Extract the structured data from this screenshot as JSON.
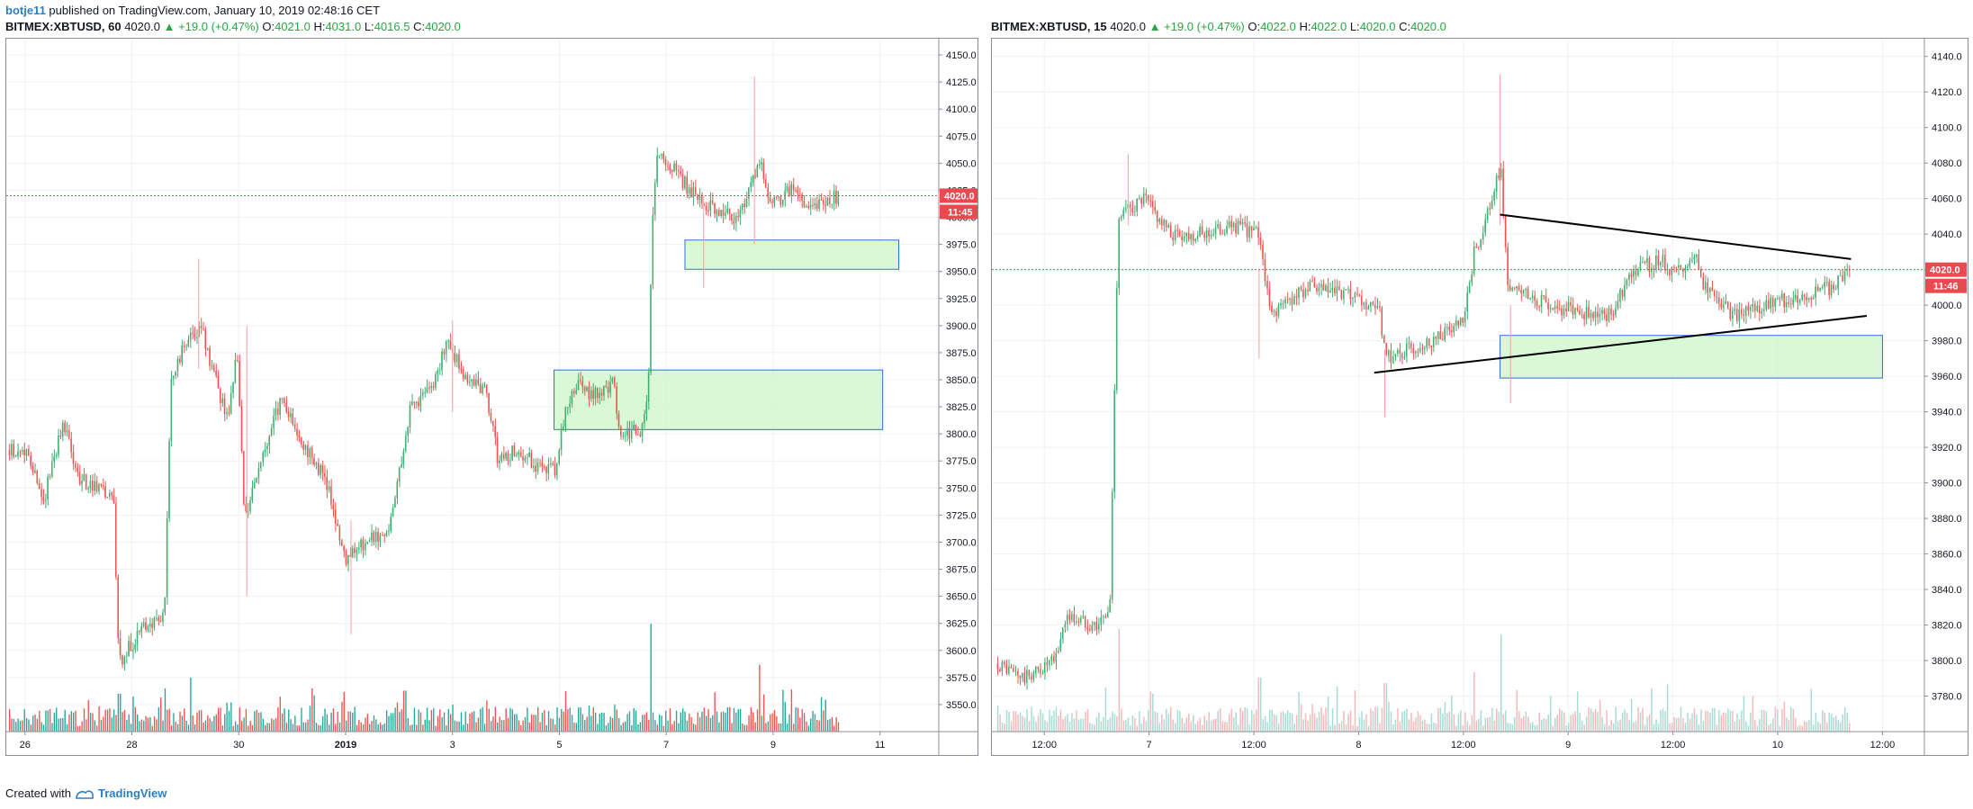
{
  "header": {
    "username": "botje11",
    "published_text": "published on TradingView.com, January 10, 2019 02:48:16 CET"
  },
  "colors": {
    "up": "#26a69a",
    "down": "#ef5350",
    "up_candle": "#3fae6f",
    "zone_fill": "#ccf5c8",
    "zone_border": "#2f6fe0",
    "price_line": "#e84a50",
    "grid": "#eef1f5"
  },
  "charts": [
    {
      "symbol": "BITMEX:XBTUSD, 60",
      "last": "4020.0",
      "change": "+19.0 (+0.47%)",
      "open": "4021.0",
      "high": "4031.0",
      "low": "4016.5",
      "close": "4020.0",
      "price_label": "4020.0",
      "countdown": "11:45"
    },
    {
      "symbol": "BITMEX:XBTUSD, 15",
      "last": "4020.0",
      "change": "+19.0 (+0.47%)",
      "open": "4022.0",
      "high": "4022.0",
      "low": "4020.0",
      "close": "4020.0",
      "price_label": "4020.0",
      "countdown": "11:46"
    }
  ],
  "chart_data": [
    {
      "type": "candlestick",
      "title": "BITMEX:XBTUSD, 60",
      "ylim": [
        3525,
        4165
      ],
      "y_ticks": [
        3550,
        3575,
        3600,
        3625,
        3650,
        3675,
        3700,
        3725,
        3750,
        3775,
        3800,
        3825,
        3850,
        3875,
        3900,
        3925,
        3950,
        3975,
        4000,
        4025,
        4050,
        4075,
        4100,
        4125,
        4150
      ],
      "x_ticks": [
        "26",
        "28",
        "30",
        "2019",
        "3",
        "5",
        "7",
        "9",
        "11"
      ],
      "x_tick_index": [
        0,
        2,
        4,
        6,
        8,
        10,
        12,
        14,
        16
      ],
      "x_range": [
        -0.35,
        17.1
      ],
      "last_price": 4020,
      "zones": [
        {
          "t0": 12.35,
          "t1": 16.35,
          "top": 3979,
          "bottom": 3952
        },
        {
          "t0": 9.9,
          "t1": 16.05,
          "top": 3859,
          "bottom": 3804
        }
      ],
      "trendlines": [],
      "path": [
        [
          0,
          3785
        ],
        [
          0.35,
          3740
        ],
        [
          0.7,
          3812
        ],
        [
          1.0,
          3760
        ],
        [
          1.3,
          3750
        ],
        [
          1.65,
          3740
        ],
        [
          1.75,
          3590
        ],
        [
          2.3,
          3625
        ],
        [
          2.6,
          3630
        ],
        [
          2.72,
          3850
        ],
        [
          3.0,
          3885
        ],
        [
          3.3,
          3895
        ],
        [
          3.55,
          3850
        ],
        [
          3.8,
          3810
        ],
        [
          3.95,
          3880
        ],
        [
          4.1,
          3725
        ],
        [
          4.5,
          3790
        ],
        [
          4.8,
          3835
        ],
        [
          5.2,
          3790
        ],
        [
          5.6,
          3760
        ],
        [
          6.0,
          3685
        ],
        [
          6.4,
          3700
        ],
        [
          6.8,
          3710
        ],
        [
          7.2,
          3825
        ],
        [
          7.6,
          3840
        ],
        [
          7.9,
          3885
        ],
        [
          8.2,
          3855
        ],
        [
          8.6,
          3840
        ],
        [
          8.85,
          3775
        ],
        [
          9.2,
          3785
        ],
        [
          9.6,
          3770
        ],
        [
          9.9,
          3765
        ],
        [
          10.05,
          3810
        ],
        [
          10.3,
          3845
        ],
        [
          10.6,
          3835
        ],
        [
          11.0,
          3848
        ],
        [
          11.1,
          3805
        ],
        [
          11.5,
          3800
        ],
        [
          11.65,
          3830
        ],
        [
          11.72,
          3975
        ],
        [
          11.8,
          4058
        ],
        [
          12.2,
          4040
        ],
        [
          12.6,
          4015
        ],
        [
          13.0,
          4005
        ],
        [
          13.3,
          4000
        ],
        [
          13.6,
          4030
        ],
        [
          13.75,
          4050
        ],
        [
          13.95,
          4010
        ],
        [
          14.3,
          4025
        ],
        [
          14.7,
          4010
        ],
        [
          15.0,
          4015
        ],
        [
          15.25,
          4020
        ]
      ],
      "spikes": [
        {
          "t": 3.25,
          "high": 3962,
          "low": 3860
        },
        {
          "t": 8.0,
          "high": 3905,
          "low": 3820
        },
        {
          "t": 13.65,
          "high": 4130,
          "low": 3975
        },
        {
          "t": 12.7,
          "high": 4020,
          "low": 3935
        },
        {
          "t": 4.15,
          "high": 3900,
          "low": 3650
        },
        {
          "t": 6.1,
          "high": 3720,
          "low": 3615
        }
      ],
      "volume_spikes": [
        {
          "t": 11.7,
          "v": 1.0
        },
        {
          "t": 13.75,
          "v": 0.62
        },
        {
          "t": 3.1,
          "v": 0.5
        },
        {
          "t": 2.6,
          "v": 0.4
        },
        {
          "t": 7.1,
          "v": 0.38
        },
        {
          "t": 1.75,
          "v": 0.35
        }
      ]
    },
    {
      "type": "candlestick",
      "title": "BITMEX:XBTUSD, 15",
      "ylim": [
        3760,
        4150
      ],
      "y_ticks": [
        3780,
        3800,
        3820,
        3840,
        3860,
        3880,
        3900,
        3920,
        3940,
        3960,
        3980,
        4000,
        4020,
        4040,
        4060,
        4080,
        4100,
        4120,
        4140
      ],
      "x_ticks": [
        "12:00",
        "7",
        "12:00",
        "8",
        "12:00",
        "9",
        "12:00",
        "10",
        "12:00"
      ],
      "x_tick_index": [
        0,
        1,
        2,
        3,
        4,
        5,
        6,
        7,
        8
      ],
      "x_range": [
        -0.5,
        8.4
      ],
      "last_price": 4020,
      "zones": [
        {
          "t0": 4.35,
          "t1": 8.0,
          "top": 3983,
          "bottom": 3959
        }
      ],
      "trendlines": [
        {
          "t0": 4.35,
          "y0": 4051,
          "t1": 7.7,
          "y1": 4026
        },
        {
          "t0": 3.15,
          "y0": 3962,
          "t1": 7.85,
          "y1": 3994
        }
      ],
      "path": [
        [
          -0.5,
          3800
        ],
        [
          -0.2,
          3790
        ],
        [
          0.1,
          3800
        ],
        [
          0.2,
          3825
        ],
        [
          0.5,
          3820
        ],
        [
          0.62,
          3828
        ],
        [
          0.7,
          4050
        ],
        [
          0.95,
          4060
        ],
        [
          1.2,
          4040
        ],
        [
          1.5,
          4040
        ],
        [
          1.8,
          4045
        ],
        [
          2.05,
          4040
        ],
        [
          2.15,
          3995
        ],
        [
          2.5,
          4010
        ],
        [
          2.9,
          4005
        ],
        [
          3.2,
          3995
        ],
        [
          3.25,
          3970
        ],
        [
          3.6,
          3978
        ],
        [
          4.0,
          3990
        ],
        [
          4.1,
          4030
        ],
        [
          4.2,
          4045
        ],
        [
          4.35,
          4078
        ],
        [
          4.42,
          4010
        ],
        [
          4.8,
          4000
        ],
        [
          5.2,
          3995
        ],
        [
          5.4,
          3995
        ],
        [
          5.6,
          4020
        ],
        [
          5.9,
          4025
        ],
        [
          6.0,
          4018
        ],
        [
          6.2,
          4028
        ],
        [
          6.3,
          4010
        ],
        [
          6.6,
          3993
        ],
        [
          6.9,
          4000
        ],
        [
          7.2,
          4005
        ],
        [
          7.5,
          4010
        ],
        [
          7.7,
          4022
        ]
      ],
      "spikes": [
        {
          "t": 4.35,
          "high": 4130,
          "low": 4045
        },
        {
          "t": 3.25,
          "high": 3975,
          "low": 3937
        },
        {
          "t": 4.45,
          "high": 4000,
          "low": 3945
        },
        {
          "t": 0.8,
          "high": 4085,
          "low": 4045
        },
        {
          "t": 2.05,
          "high": 4020,
          "low": 3970
        }
      ],
      "volume_spikes": [
        {
          "t": 0.7,
          "v": 0.95
        },
        {
          "t": 4.35,
          "v": 0.9
        },
        {
          "t": 4.1,
          "v": 0.55
        },
        {
          "t": 2.05,
          "v": 0.5
        },
        {
          "t": 3.25,
          "v": 0.45
        },
        {
          "t": 5.6,
          "v": 0.3
        }
      ]
    }
  ],
  "footer": {
    "created_with": "Created with",
    "brand": "TradingView"
  }
}
